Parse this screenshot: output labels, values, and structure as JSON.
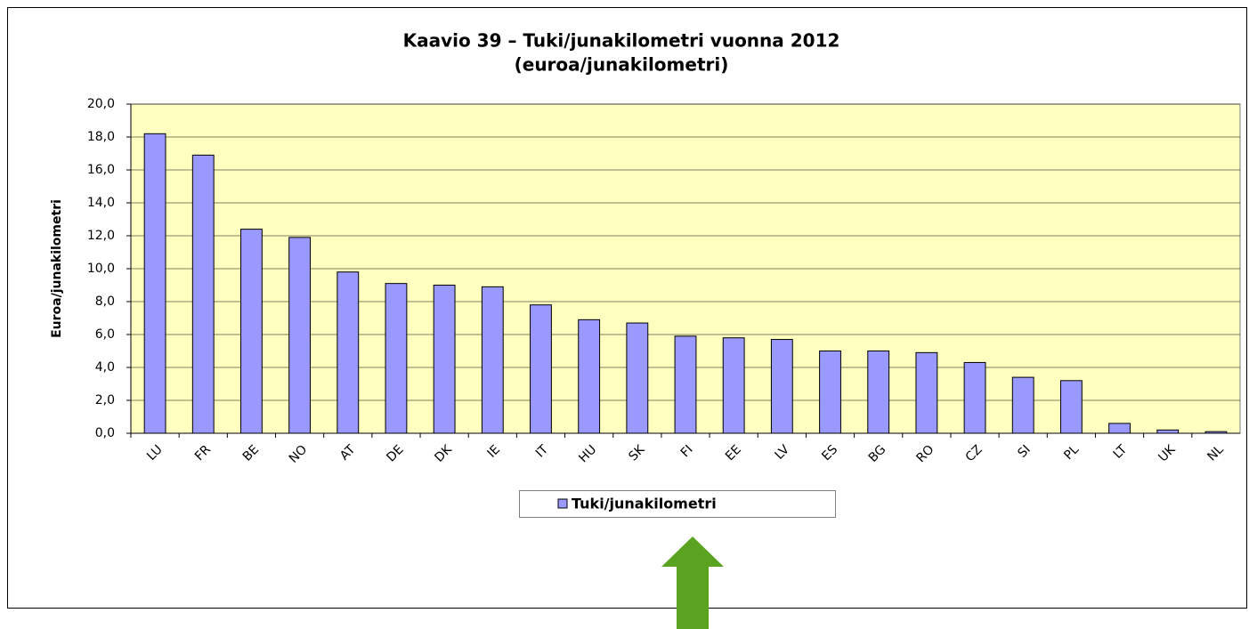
{
  "chart_data": {
    "type": "bar",
    "title": "Kaavio 39 – Tuki/junakilometri vuonna 2012",
    "subtitle": "(euroa/junakilometri)",
    "y_label": "Euroa/junakilometri",
    "categories": [
      "LU",
      "FR",
      "BE",
      "NO",
      "AT",
      "DE",
      "DK",
      "IE",
      "IT",
      "HU",
      "SK",
      "FI",
      "EE",
      "LV",
      "ES",
      "BG",
      "RO",
      "CZ",
      "SI",
      "PL",
      "LT",
      "UK",
      "NL"
    ],
    "series": [
      {
        "name": "Tuki/junakilometri",
        "color": "#9999ff",
        "values": [
          18.2,
          16.9,
          12.4,
          11.9,
          9.8,
          9.1,
          9.0,
          8.9,
          7.8,
          6.9,
          6.7,
          5.9,
          5.8,
          5.7,
          5.0,
          5.0,
          4.9,
          4.3,
          3.4,
          3.2,
          0.6,
          0.2,
          0.1
        ]
      }
    ],
    "ylim": [
      0,
      20
    ],
    "yticks": [
      {
        "value": 0,
        "label": "0,0"
      },
      {
        "value": 2,
        "label": "2,0"
      },
      {
        "value": 4,
        "label": "4,0"
      },
      {
        "value": 6,
        "label": "6,0"
      },
      {
        "value": 8,
        "label": "8,0"
      },
      {
        "value": 10,
        "label": "10,0"
      },
      {
        "value": 12,
        "label": "12,0"
      },
      {
        "value": 14,
        "label": "14,0"
      },
      {
        "value": 16,
        "label": "16,0"
      },
      {
        "value": 18,
        "label": "18,0"
      },
      {
        "value": 20,
        "label": "20,0"
      }
    ],
    "grid": true,
    "legend": "bottom"
  }
}
